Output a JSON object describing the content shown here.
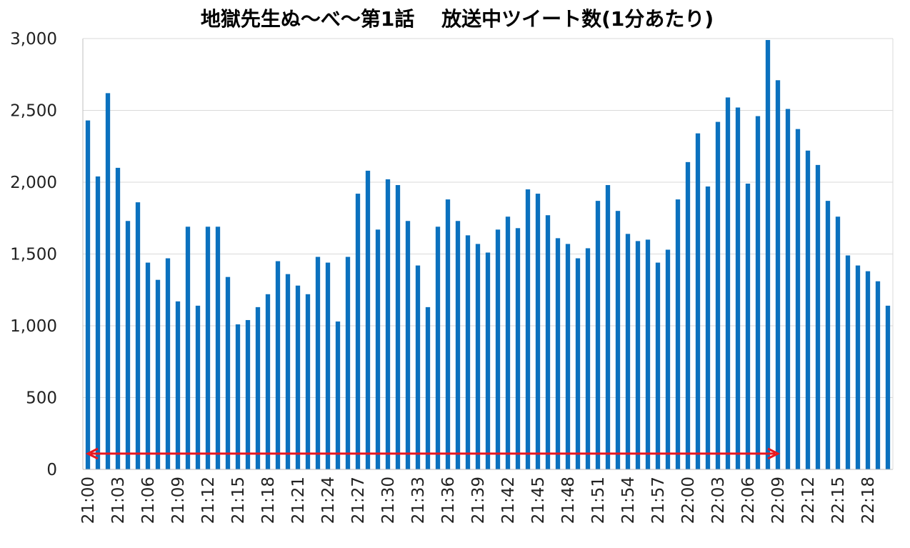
{
  "chart_data": {
    "type": "bar",
    "title": "地獄先生ぬ～べ～第1話　 放送中ツイート数(1分あたり)",
    "xlabel": "",
    "ylabel": "",
    "ylim": [
      0,
      3000
    ],
    "y_ticks": [
      "0",
      "500",
      "1,000",
      "1,500",
      "2,000",
      "2,500",
      "3,000"
    ],
    "y_tick_values": [
      0,
      500,
      1000,
      1500,
      2000,
      2500,
      3000
    ],
    "x_tick_labels": [
      "21:00",
      "21:03",
      "21:06",
      "21:09",
      "21:12",
      "21:15",
      "21:18",
      "21:21",
      "21:24",
      "21:27",
      "21:30",
      "21:33",
      "21:36",
      "21:39",
      "21:42",
      "21:45",
      "21:48",
      "21:51",
      "21:54",
      "21:57",
      "22:00",
      "22:03",
      "22:06",
      "22:09",
      "22:12",
      "22:15",
      "22:18"
    ],
    "x_tick_every": 3,
    "categories": [
      "21:00",
      "21:01",
      "21:02",
      "21:03",
      "21:04",
      "21:05",
      "21:06",
      "21:07",
      "21:08",
      "21:09",
      "21:10",
      "21:11",
      "21:12",
      "21:13",
      "21:14",
      "21:15",
      "21:16",
      "21:17",
      "21:18",
      "21:19",
      "21:20",
      "21:21",
      "21:22",
      "21:23",
      "21:24",
      "21:25",
      "21:26",
      "21:27",
      "21:28",
      "21:29",
      "21:30",
      "21:31",
      "21:32",
      "21:33",
      "21:34",
      "21:35",
      "21:36",
      "21:37",
      "21:38",
      "21:39",
      "21:40",
      "21:41",
      "21:42",
      "21:43",
      "21:44",
      "21:45",
      "21:46",
      "21:47",
      "21:48",
      "21:49",
      "21:50",
      "21:51",
      "21:52",
      "21:53",
      "21:54",
      "21:55",
      "21:56",
      "21:57",
      "21:58",
      "21:59",
      "22:00",
      "22:01",
      "22:02",
      "22:03",
      "22:04",
      "22:05",
      "22:06",
      "22:07",
      "22:08",
      "22:09",
      "22:10",
      "22:11",
      "22:12",
      "22:13",
      "22:14",
      "22:15",
      "22:16",
      "22:17",
      "22:18",
      "22:19",
      "22:20"
    ],
    "values": [
      2430,
      2040,
      2620,
      2100,
      1730,
      1860,
      1440,
      1320,
      1470,
      1170,
      1690,
      1140,
      1690,
      1690,
      1340,
      1010,
      1040,
      1130,
      1220,
      1450,
      1360,
      1280,
      1220,
      1480,
      1440,
      1030,
      1480,
      1920,
      2080,
      1670,
      2020,
      1980,
      1730,
      1420,
      1130,
      1690,
      1880,
      1730,
      1630,
      1570,
      1510,
      1670,
      1760,
      1680,
      1950,
      1920,
      1770,
      1610,
      1570,
      1470,
      1540,
      1870,
      1980,
      1800,
      1640,
      1590,
      1600,
      1440,
      1530,
      1880,
      2140,
      2340,
      1970,
      2420,
      2590,
      2520,
      1990,
      2460,
      2990,
      2710,
      2510,
      2370,
      2220,
      2120,
      1870,
      1760,
      1490,
      1420,
      1380,
      1310,
      1140
    ],
    "grid": true,
    "legend": "none",
    "colors": {
      "bar": "#0b71be",
      "arrow": "#e8171f",
      "grid": "#d9d9d9",
      "axis": "#bfbfbf"
    },
    "annotation": {
      "type": "double-arrow",
      "from": "21:00",
      "to": "22:09",
      "y": 110
    }
  }
}
